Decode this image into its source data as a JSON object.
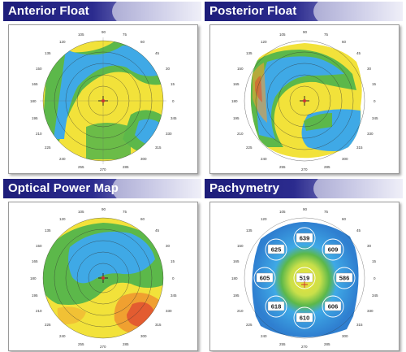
{
  "panels": {
    "anterior_float": {
      "title": "Anterior Float"
    },
    "posterior_float": {
      "title": "Posterior Float"
    },
    "optical_power_map": {
      "title": "Optical Power Map"
    },
    "pachymetry": {
      "title": "Pachymetry"
    }
  },
  "angle_labels": {
    "a135": "135",
    "a120": "120",
    "a105": "105",
    "a90": "90",
    "a75": "75",
    "a60": "60",
    "a45": "45",
    "a150": "150",
    "a165": "165",
    "a180": "180",
    "a195": "195",
    "a210": "210",
    "a225": "225",
    "a30": "30",
    "a15": "15",
    "a0": "0",
    "a345": "345",
    "a330": "330",
    "a315": "315",
    "a240": "240",
    "a255": "255",
    "a270": "270",
    "a285": "285",
    "a300": "300"
  },
  "pachymetry_values": {
    "top": "639",
    "upper_left": "625",
    "upper_right": "609",
    "left": "605",
    "center": "519",
    "right": "586",
    "lower_left": "618",
    "lower_right": "606",
    "bottom": "610"
  },
  "colors": {
    "header_blue": "#1d1d7a",
    "map_blue": "#3fa9e6",
    "map_green": "#5cb84a",
    "map_yellow": "#f2e23a",
    "map_orange": "#f0a030",
    "map_red": "#e05030"
  }
}
